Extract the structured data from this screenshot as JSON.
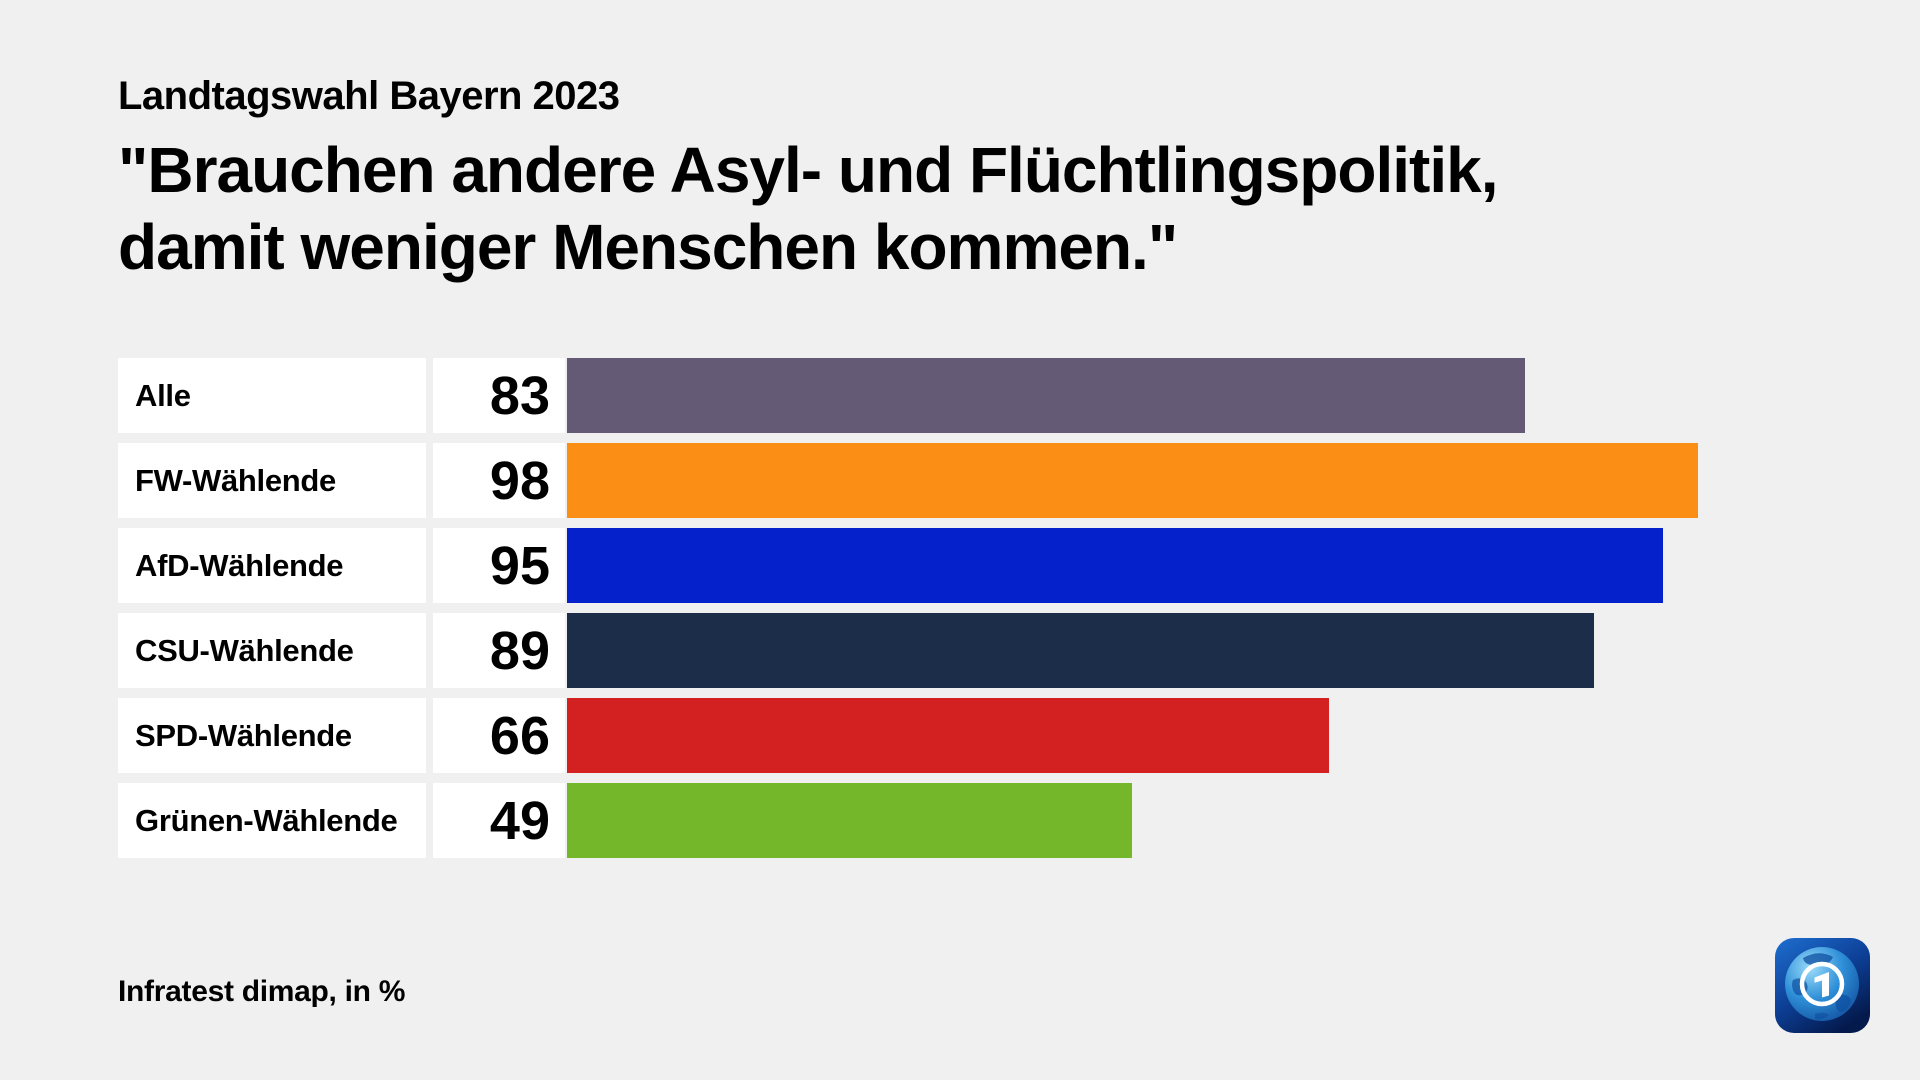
{
  "header": {
    "kicker": "Landtagswahl Bayern 2023",
    "title_line1": "\"Brauchen andere Asyl- und Flüchtlingspolitik,",
    "title_line2": "damit weniger Menschen kommen.\""
  },
  "footer": {
    "source": "Infratest dimap, in %"
  },
  "brand": {
    "logo": "ard-tagesschau-logo"
  },
  "chart_data": {
    "type": "bar",
    "orientation": "horizontal",
    "title": "\"Brauchen andere Asyl- und Flüchtlingspolitik, damit weniger Menschen kommen.\"",
    "kicker": "Landtagswahl Bayern 2023",
    "source": "Infratest dimap",
    "unit": "%",
    "xlim": [
      0,
      100
    ],
    "grid": false,
    "legend": false,
    "categories": [
      "Alle",
      "FW-Wählende",
      "AfD-Wählende",
      "CSU-Wählende",
      "SPD-Wählende",
      "Grünen-Wählende"
    ],
    "values": [
      83,
      98,
      95,
      89,
      66,
      49
    ],
    "colors": [
      "#655a76",
      "#fb8e14",
      "#0521cc",
      "#1b2d49",
      "#d32020",
      "#74b72a"
    ],
    "rows": [
      {
        "label": "Alle",
        "value": "83",
        "color": "#655a76"
      },
      {
        "label": "FW-Wählende",
        "value": "98",
        "color": "#fb8e14"
      },
      {
        "label": "AfD-Wählende",
        "value": "95",
        "color": "#0521cc"
      },
      {
        "label": "CSU-Wählende",
        "value": "89",
        "color": "#1b2d49"
      },
      {
        "label": "SPD-Wählende",
        "value": "66",
        "color": "#d32020"
      },
      {
        "label": "Grünen-Wählende",
        "value": "49",
        "color": "#74b72a"
      }
    ]
  }
}
